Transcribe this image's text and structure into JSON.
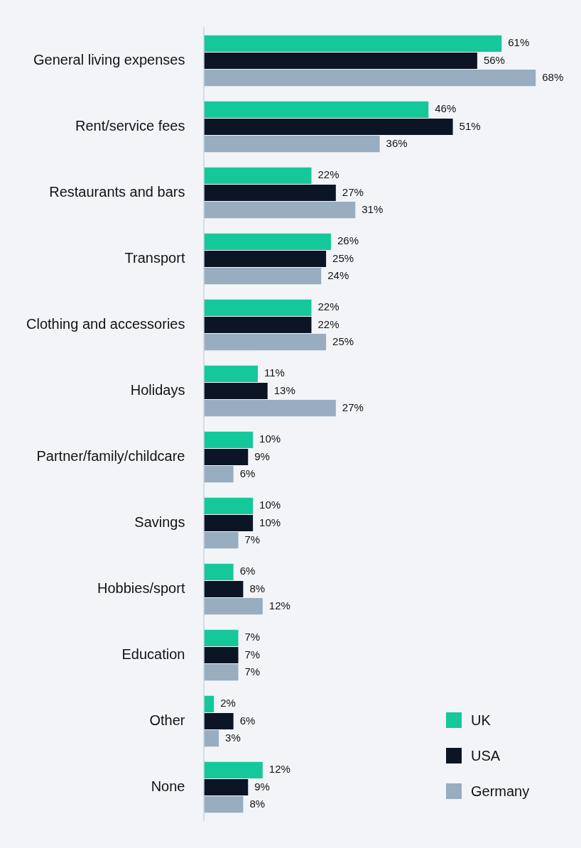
{
  "chart_data": {
    "type": "bar",
    "orientation": "horizontal",
    "legend": "bottom right",
    "categories": [
      "General living expenses",
      "Rent/service fees",
      "Restaurants and bars",
      "Transport",
      "Clothing and accessories",
      "Holidays",
      "Partner/family/childcare",
      "Savings",
      "Hobbies/sport",
      "Education",
      "Other",
      "None"
    ],
    "series": [
      {
        "name": "UK",
        "color": "#14c89a",
        "values": [
          61,
          46,
          22,
          26,
          22,
          11,
          10,
          10,
          6,
          7,
          2,
          12
        ],
        "value_labels": [
          "61%",
          "46%",
          "22%",
          "26%",
          "22%",
          "11%",
          "10%",
          "10%",
          "6%",
          "7%",
          "2%",
          "12%"
        ]
      },
      {
        "name": "USA",
        "color": "#0b1525",
        "values": [
          56,
          51,
          27,
          25,
          22,
          13,
          9,
          10,
          8,
          7,
          6,
          9
        ],
        "value_labels": [
          "56%",
          "51%",
          "27%",
          "25%",
          "22%",
          "13%",
          "9%",
          "10%",
          "8%",
          "7%",
          "6%",
          "9%"
        ]
      },
      {
        "name": "Germany",
        "color": "#98adbf",
        "values": [
          68,
          36,
          31,
          24,
          25,
          27,
          6,
          7,
          12,
          7,
          3,
          8
        ],
        "value_labels": [
          "68%",
          "36%",
          "31%",
          "24%",
          "25%",
          "27%",
          "6%",
          "7%",
          "12%",
          "7%",
          "3%",
          "8%"
        ]
      }
    ]
  }
}
